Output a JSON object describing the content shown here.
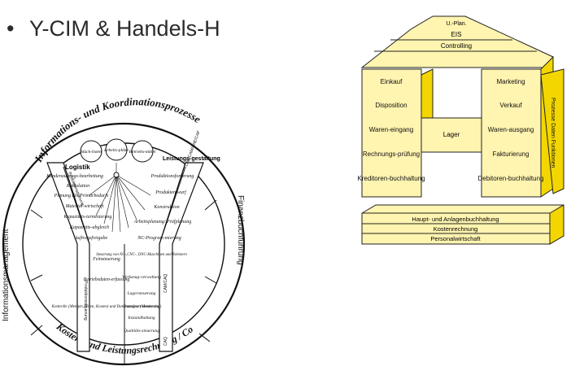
{
  "slide": {
    "bullet": "•",
    "title": "Y-CIM  & Handels-H"
  },
  "ycim": {
    "top_arc": "Informations- und Koordinationsprozesse",
    "bottom_arc": "Kosten- und Leistungsrechnung / Controlling / EIS",
    "left_arc": "Informationsmanagement",
    "right_arc": "Finanzbuchführung",
    "left_column_title": "Logistik",
    "right_column_title": "Leistungs-gestaltung",
    "circles": [
      "Stück-listen",
      "Arbeits-pläne",
      "Betriebs-mittel"
    ],
    "left_items": [
      "Kundenauftrags-bearbeitung",
      "Kalkulation",
      "Planung des Primärbedarfs",
      "Material-wirtschaft",
      "Kapazitäts-terminierung",
      "Kapazitäts-abgleich",
      "Auftragsfreigabe"
    ],
    "right_items": [
      "Produktentwurf",
      "Konstruktion",
      "Arbeitsplanung/ Prüfplanung",
      "NC-Program-mierung"
    ],
    "stem_left": [
      "Feinsteuerung",
      "Betriebsdaten-erfassung",
      "Kontrolle (Mengen,Zeiten, Kosten) und Datenanalyse (Monitoring)"
    ],
    "stem_right": [
      "Steuerung von NC-,CNC-, DNC-Maschinen und Robotern",
      "Werkzeug-verwaltung",
      "Lagersteuerung",
      "Transport-steuerung",
      "Instandhaltung",
      "Qualitäts-steuerung"
    ],
    "side_labels": [
      "Produktionsplanung",
      "Produktionssteuerung",
      "CAD/CAM/CAE/CAP",
      "CAM/CAQ",
      "CAQ"
    ],
    "top_right_header": "Produktionsforderung"
  },
  "handels_h": {
    "roof": [
      "U.-Plan.",
      "EIS",
      "Controlling"
    ],
    "left_pillar": [
      "Einkauf",
      "Disposition",
      "Waren-eingang",
      "Rechnungs-prüfung",
      "Kreditoren-buchhaltung"
    ],
    "right_pillar": [
      "Marketing",
      "Verkauf",
      "Waren-ausgang",
      "Fakturierung",
      "Debitoren-buchhaltung"
    ],
    "center": "Lager",
    "side_text": "Prozesse Daten Funktionen",
    "base": [
      "Haupt- und Anlagenbuchhaltung",
      "Kostenrechnung",
      "Personalwirtschaft"
    ],
    "colors": {
      "fill": "#fff4b0",
      "side": "#f3d600",
      "edge": "#222222"
    }
  }
}
